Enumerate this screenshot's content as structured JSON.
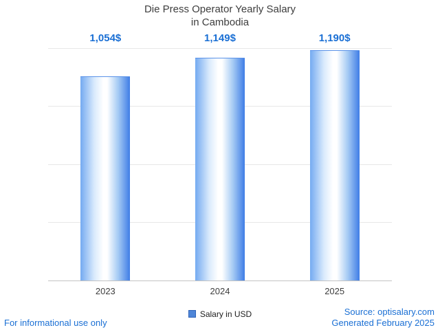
{
  "title": {
    "line1": "Die Press Operator Yearly Salary",
    "line2": "in Cambodia"
  },
  "chart_data": {
    "type": "bar",
    "categories": [
      "2023",
      "2024",
      "2025"
    ],
    "series": [
      {
        "name": "Salary in USD",
        "values": [
          1054,
          1149,
          1190
        ]
      }
    ],
    "value_labels": [
      "1,054$",
      "1,149$",
      "1,190$"
    ],
    "title": "Die Press Operator Yearly Salary in Cambodia",
    "xlabel": "",
    "ylabel": "",
    "ylim": [
      0,
      1200
    ],
    "yticks": [
      300,
      600,
      900,
      1200
    ],
    "grid": true,
    "legend_position": "bottom"
  },
  "legend": {
    "label": "Salary in USD"
  },
  "footer": {
    "left": "For informational use only",
    "source": "Source: optisalary.com",
    "generated": "Generated February 2025"
  },
  "colors": {
    "accent_text": "#1a6fd4",
    "title_text": "#3d3d3d",
    "bar_edge_left": "#74aaf1",
    "bar_fade_left": "#d9eafc",
    "bar_mid": "#ffffff",
    "bar_fade_right": "#a6cbf4",
    "bar_edge_right": "#3f7de6",
    "legend_swatch": "#4f86d8",
    "legend_swatch_border": "#2f63b8",
    "gridline": "#e7e7e7"
  }
}
